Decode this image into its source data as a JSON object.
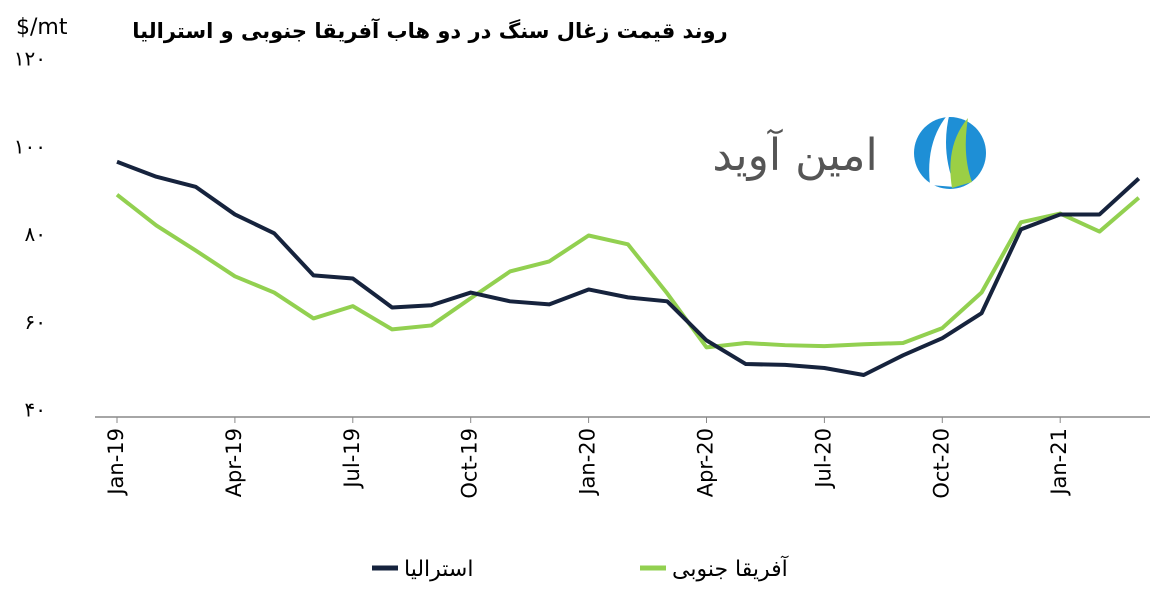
{
  "chart_data": {
    "type": "line",
    "title": "روند قیمت زغال سنگ در دو هاب آفریقا جنوبی و استرالیا",
    "y_label": "$/mt",
    "watermark": "امین آوید",
    "categories": [
      "Jan-19",
      null,
      null,
      "Apr-19",
      null,
      null,
      "Jul-19",
      null,
      null,
      "Oct-19",
      null,
      null,
      "Jan-20",
      null,
      null,
      "Apr-20",
      null,
      null,
      "Jul-20",
      null,
      null,
      "Oct-20",
      null,
      null,
      "Jan-21",
      null,
      null
    ],
    "series": [
      {
        "name": "استرالیا",
        "color": "#16233d",
        "values": [
          96.8,
          93.4,
          91.1,
          84.8,
          80.5,
          70.9,
          70.2,
          63.6,
          64.1,
          67.0,
          65.0,
          64.3,
          67.7,
          65.9,
          65.0,
          56.1,
          50.7,
          50.5,
          49.8,
          48.2,
          52.7,
          56.6,
          62.3,
          81.4,
          84.8,
          84.8,
          93.0
        ]
      },
      {
        "name": "آفریقا جنوبی",
        "color": "#92d050",
        "values": [
          89.3,
          82.3,
          76.6,
          70.7,
          67.0,
          61.1,
          63.9,
          58.6,
          59.5,
          65.7,
          71.8,
          74.1,
          80.0,
          78.0,
          66.8,
          54.5,
          55.5,
          55.0,
          54.8,
          55.2,
          55.5,
          58.9,
          67.0,
          83.0,
          85.0,
          80.9,
          88.6
        ]
      }
    ],
    "ylim": [
      40,
      120
    ],
    "yticks": [
      {
        "value": 40,
        "label": "۴۰"
      },
      {
        "value": 60,
        "label": "۶۰"
      },
      {
        "value": 80,
        "label": "۸۰"
      },
      {
        "value": 100,
        "label": "۱۰۰"
      },
      {
        "value": 120,
        "label": "۱۲۰"
      }
    ],
    "grid": false,
    "legend": "bottom"
  }
}
